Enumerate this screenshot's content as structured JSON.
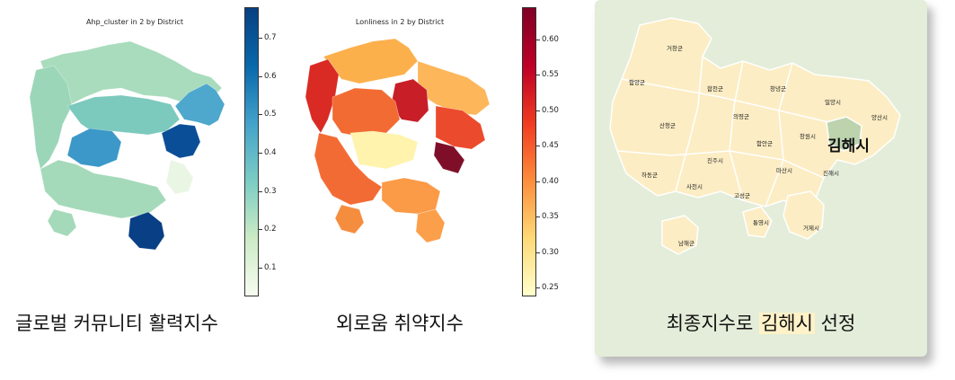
{
  "map1": {
    "title": "Ahp_cluster in 2 by District",
    "caption": "글로벌 커뮤니티 활력지수",
    "colorbar_ticks": [
      "0.7",
      "0.6",
      "0.5",
      "0.4",
      "0.3",
      "0.2",
      "0.1"
    ],
    "colormap": [
      "#f7fcf0",
      "#ccebc5",
      "#7bccc4",
      "#43a2ca",
      "#0868ac",
      "#084081"
    ],
    "colorbar_range": [
      0.03,
      0.78
    ]
  },
  "map2": {
    "title": "Lonliness in 2 by District",
    "caption": "외로움 취약지수",
    "colorbar_ticks": [
      "0.60",
      "0.55",
      "0.50",
      "0.45",
      "0.40",
      "0.35",
      "0.30",
      "0.25"
    ],
    "colormap": [
      "#ffffcc",
      "#fed976",
      "#fd8d3c",
      "#f03b20",
      "#bd0026",
      "#800026"
    ],
    "colorbar_range": [
      0.24,
      0.645
    ]
  },
  "map3": {
    "selected": "김해시",
    "caption_before": "최종지수로 ",
    "caption_highlight": "김해시",
    "caption_after": " 선정",
    "regions": [
      "거창군",
      "함양군",
      "합천군",
      "창녕군",
      "밀양시",
      "양산시",
      "의령군",
      "산청군",
      "창원시",
      "함안군",
      "진주시",
      "하동군",
      "사천시",
      "마산시",
      "진해시",
      "고성군",
      "통영시",
      "거제시",
      "남해군"
    ],
    "land_color": "#fcedc4",
    "selected_color": "#bcd3ad"
  }
}
